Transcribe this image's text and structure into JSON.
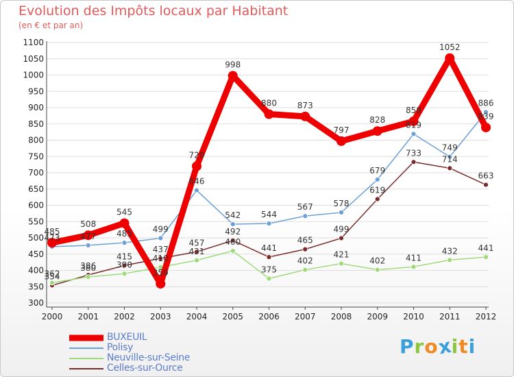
{
  "title": "Evolution des Impôts locaux par Habitant",
  "subtitle": "(en € et par an)",
  "logo": {
    "letters": [
      "P",
      "r",
      "o",
      "x",
      "i",
      "t",
      "i"
    ],
    "colors": [
      "#3aa0dc",
      "#8cc63f",
      "#f08a24",
      "#3aa0dc",
      "#8cc63f",
      "#f08a24",
      "#3aa0dc"
    ]
  },
  "chart_data": {
    "type": "line",
    "title": "Evolution des Impôts locaux par Habitant",
    "subtitle": "(en € et par an)",
    "x": [
      2000,
      2001,
      2002,
      2003,
      2004,
      2005,
      2006,
      2007,
      2008,
      2009,
      2010,
      2011,
      2012
    ],
    "x_tick_labels": [
      "2000",
      "2001",
      "2002",
      "2003",
      "2004",
      "2005",
      "2006",
      "2007",
      "2008",
      "2009",
      "2010",
      "2011",
      "2012"
    ],
    "ylim": [
      300,
      1100
    ],
    "y_ticks": [
      "300",
      "350",
      "400",
      "450",
      "500",
      "550",
      "600",
      "650",
      "700",
      "750",
      "800",
      "850",
      "900",
      "950",
      "1000",
      "1050",
      "1100"
    ],
    "grid": "horizontal",
    "legend_position": "bottom-left",
    "series": [
      {
        "name": "BUXEUIL",
        "color": "#ee0000",
        "emphasis": "thick",
        "values": [
          485,
          508,
          545,
          359,
          720,
          998,
          880,
          873,
          797,
          828,
          858,
          1052,
          839
        ],
        "labels": [
          "485",
          "508",
          "545",
          "359",
          "720",
          "998",
          "880",
          "873",
          "797",
          "828",
          "858",
          "1052",
          "839"
        ]
      },
      {
        "name": "Polisy",
        "color": "#6c9fd4",
        "values": [
          473,
          477,
          485,
          499,
          646,
          542,
          544,
          567,
          578,
          679,
          819,
          749,
          886
        ],
        "labels": [
          "473",
          "477",
          "485",
          "499",
          "646",
          "542",
          "544",
          "567",
          "578",
          "679",
          "819",
          "749",
          "886"
        ]
      },
      {
        "name": "Neuville-sur-Seine",
        "color": "#9fda7a",
        "values": [
          362,
          380,
          390,
          410,
          431,
          460,
          375,
          402,
          421,
          402,
          411,
          432,
          441
        ],
        "labels": [
          "362",
          "380",
          "390",
          "410",
          "431",
          "460",
          "375",
          "402",
          "421",
          "402",
          "411",
          "432",
          "441"
        ]
      },
      {
        "name": "Celles-sur-Ource",
        "color": "#7a2a2a",
        "values": [
          354,
          386,
          415,
          437,
          457,
          492,
          441,
          465,
          499,
          619,
          733,
          714,
          663
        ],
        "labels": [
          "354",
          "386",
          "415",
          "437",
          "457",
          "492",
          "441",
          "465",
          "499",
          "619",
          "733",
          "714",
          "663"
        ]
      }
    ]
  }
}
